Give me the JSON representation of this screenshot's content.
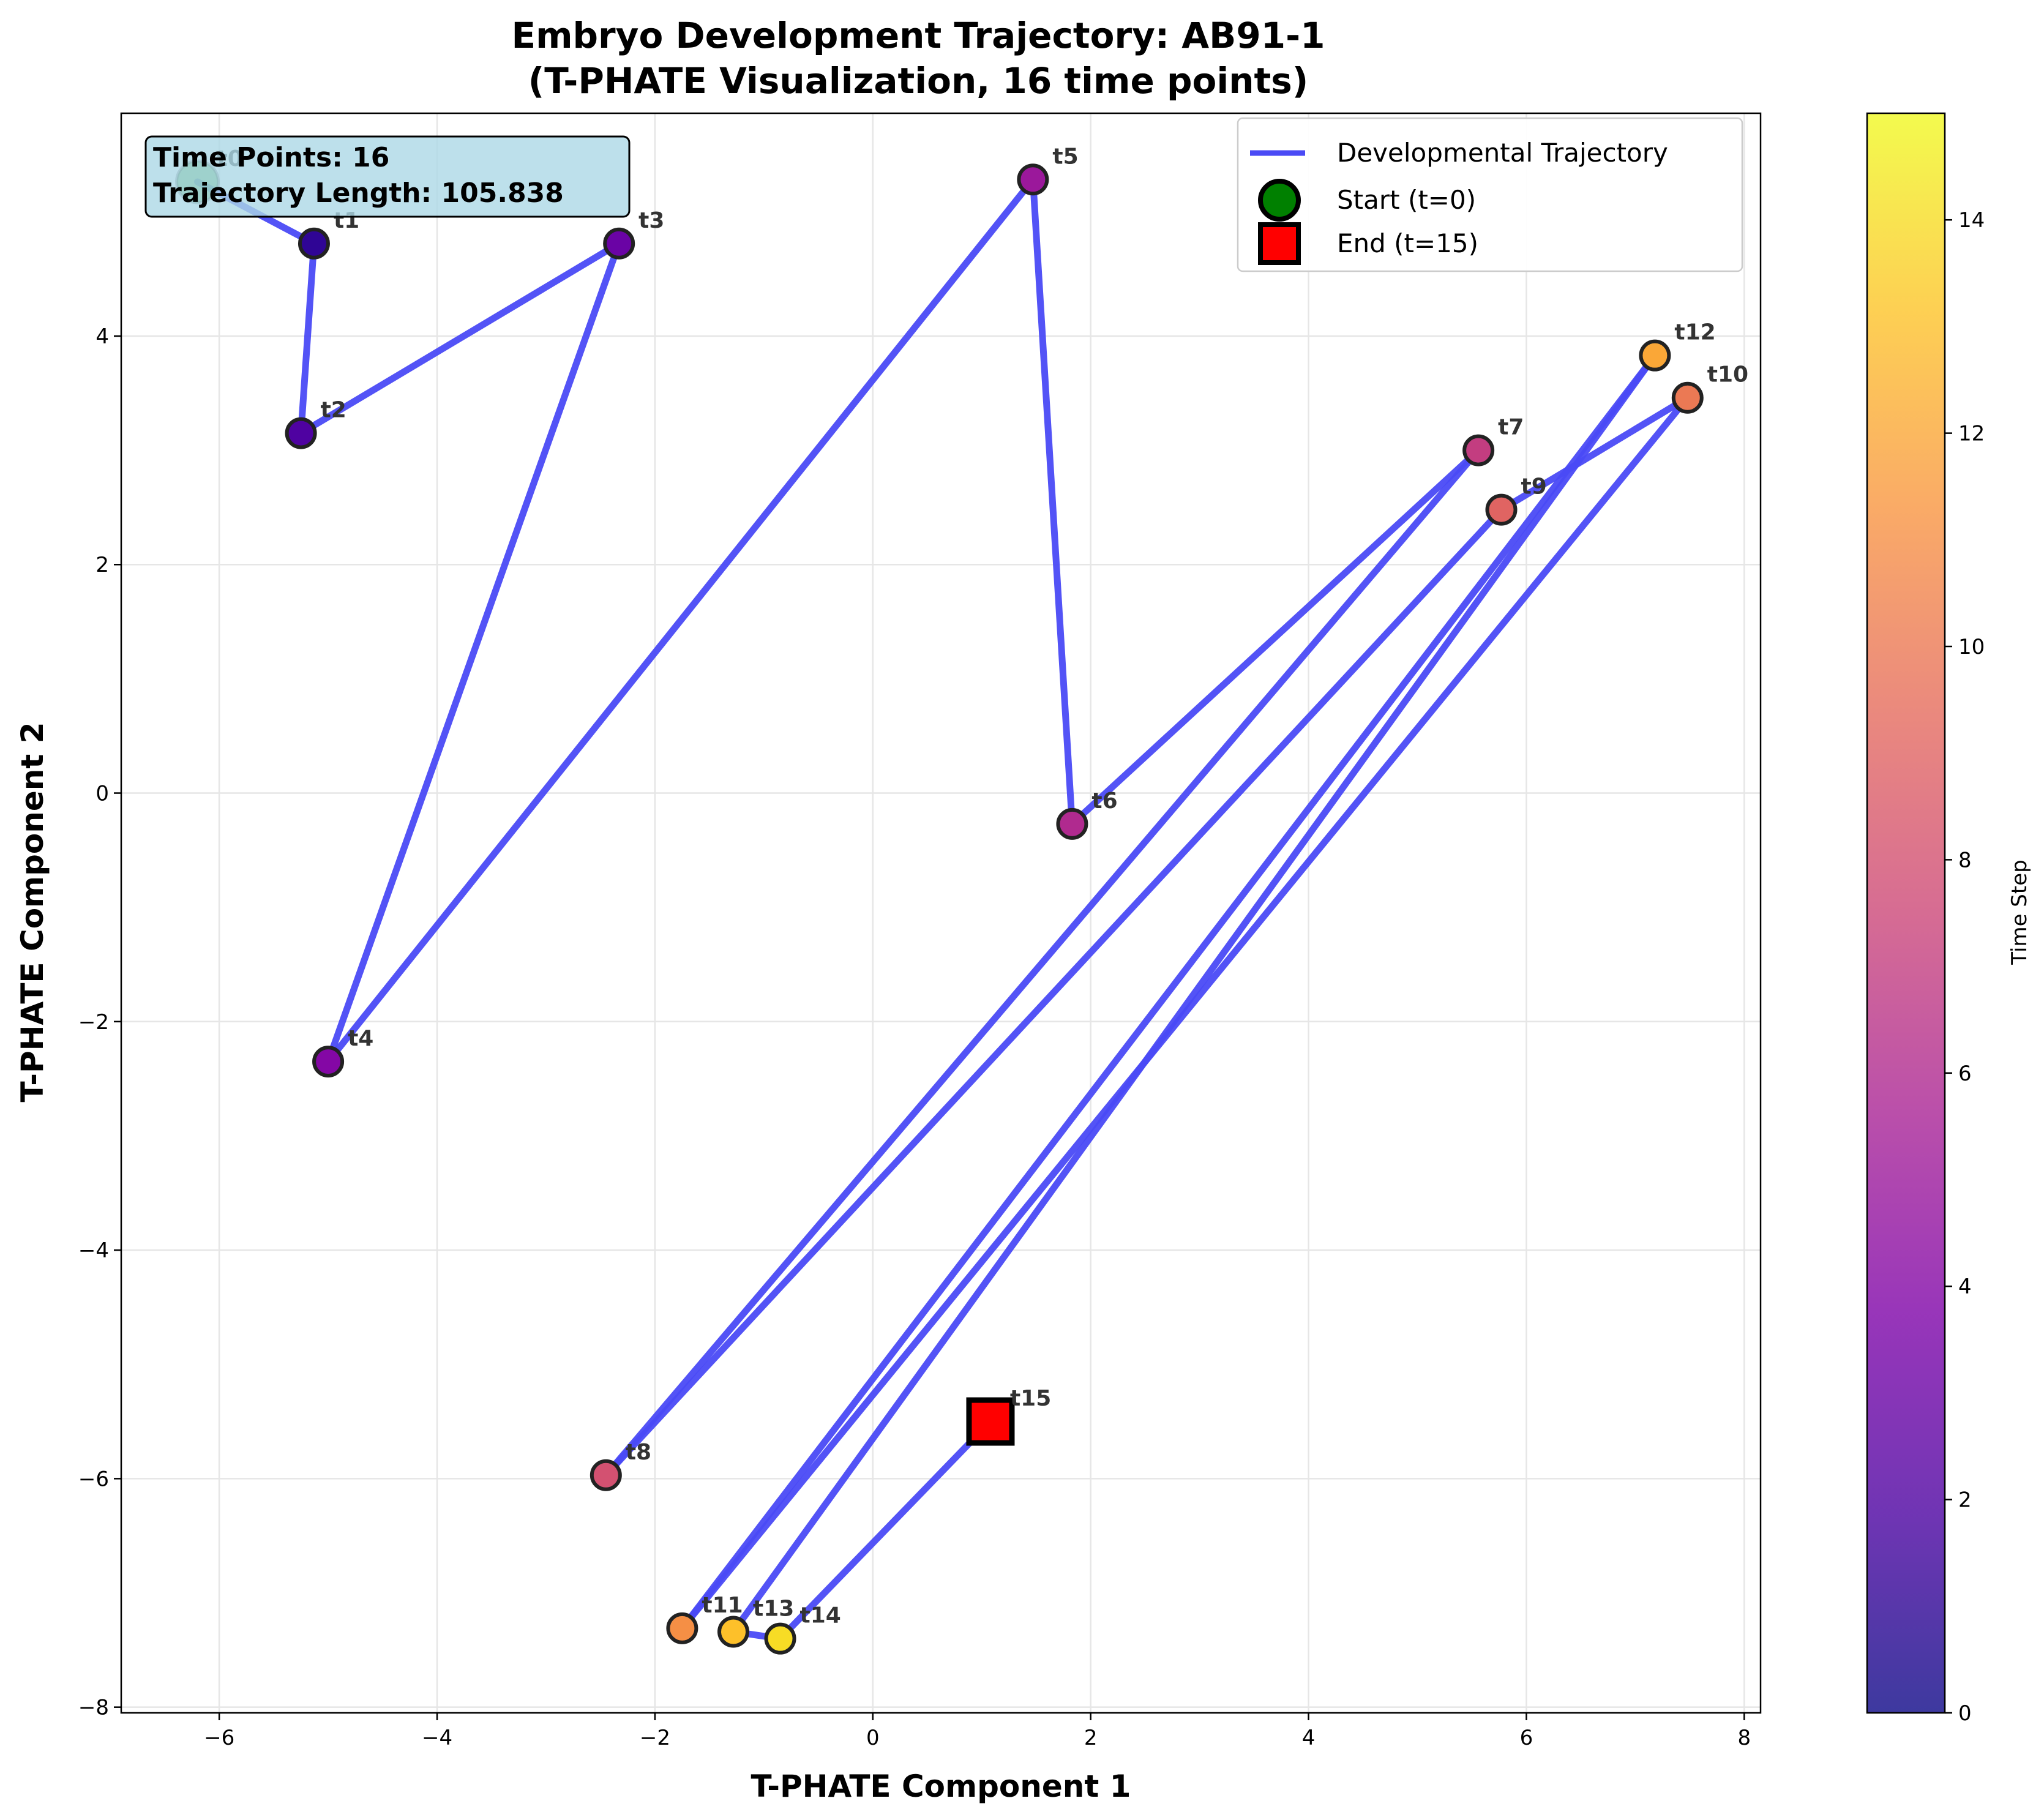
{
  "chart_data": {
    "type": "scatter",
    "title": "Embryo Development Trajectory: AB91-1",
    "subtitle": "(T-PHATE Visualization, 16 time points)",
    "xlabel": "T-PHATE Component 1",
    "ylabel": "T-PHATE Component 2",
    "xlim": [
      -6.9,
      8.15
    ],
    "ylim": [
      -8.05,
      5.95
    ],
    "xticks": [
      -6,
      -4,
      -2,
      0,
      2,
      4,
      6,
      8
    ],
    "yticks": [
      -8,
      -6,
      -4,
      -2,
      0,
      2,
      4
    ],
    "grid": true,
    "points": [
      {
        "label": "t0",
        "t": 0,
        "x": -6.2,
        "y": 5.35
      },
      {
        "label": "t1",
        "t": 1,
        "x": -5.13,
        "y": 4.81
      },
      {
        "label": "t2",
        "t": 2,
        "x": -5.25,
        "y": 3.15
      },
      {
        "label": "t3",
        "t": 3,
        "x": -2.33,
        "y": 4.81
      },
      {
        "label": "t4",
        "t": 4,
        "x": -5.0,
        "y": -2.35
      },
      {
        "label": "t5",
        "t": 5,
        "x": 1.47,
        "y": 5.37
      },
      {
        "label": "t6",
        "t": 6,
        "x": 1.83,
        "y": -0.27
      },
      {
        "label": "t7",
        "t": 7,
        "x": 5.56,
        "y": 3.0
      },
      {
        "label": "t8",
        "t": 8,
        "x": -2.45,
        "y": -5.97
      },
      {
        "label": "t9",
        "t": 9,
        "x": 5.77,
        "y": 2.48
      },
      {
        "label": "t10",
        "t": 10,
        "x": 7.48,
        "y": 3.46
      },
      {
        "label": "t11",
        "t": 11,
        "x": -1.75,
        "y": -7.31
      },
      {
        "label": "t12",
        "t": 12,
        "x": 7.18,
        "y": 3.83
      },
      {
        "label": "t13",
        "t": 13,
        "x": -1.28,
        "y": -7.34
      },
      {
        "label": "t14",
        "t": 14,
        "x": -0.85,
        "y": -7.4
      },
      {
        "label": "t15",
        "t": 15,
        "x": 1.08,
        "y": -5.5
      }
    ],
    "series": [
      {
        "name": "Developmental Trajectory",
        "color": "#3333ff"
      }
    ],
    "legend": {
      "placement": "top-right",
      "entries": [
        {
          "label": "Developmental Trajectory",
          "marker": "line",
          "color": "#4a4af5"
        },
        {
          "label": "Start (t=0)",
          "marker": "circle",
          "color": "#008000"
        },
        {
          "label": "End (t=15)",
          "marker": "square",
          "color": "#ff0000"
        }
      ]
    },
    "info_box": {
      "line1": "Time Points: 16",
      "line2": "Trajectory Length: 105.838"
    },
    "colorbar": {
      "label": "Time Step",
      "colormap": "plasma",
      "range": [
        0,
        15
      ],
      "ticks": [
        0,
        2,
        4,
        6,
        8,
        10,
        12,
        14
      ]
    }
  }
}
